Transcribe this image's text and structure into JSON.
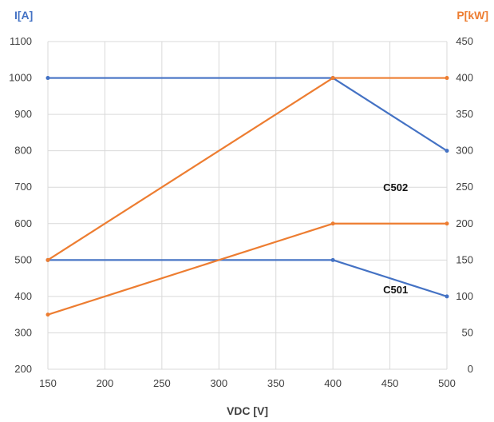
{
  "chart_data": {
    "type": "line",
    "xlabel": "VDC [V]",
    "ylabel_left": "I[A]",
    "ylabel_right": "P[kW]",
    "x_ticks": [
      150,
      200,
      250,
      300,
      350,
      400,
      450,
      500
    ],
    "y_left_ticks": [
      200,
      300,
      400,
      500,
      600,
      700,
      800,
      900,
      1000,
      1100
    ],
    "y_right_ticks": [
      0,
      50,
      100,
      150,
      200,
      250,
      300,
      350,
      400,
      450
    ],
    "xlim": [
      150,
      500
    ],
    "ylim_left": [
      200,
      1100
    ],
    "ylim_right": [
      0,
      450
    ],
    "grid": true,
    "colors": {
      "current": "#4472C4",
      "power": "#ED7D31"
    },
    "series": [
      {
        "axis": "left",
        "color": "current",
        "x": [
          150,
          400,
          500
        ],
        "y": [
          1000,
          1000,
          800
        ]
      },
      {
        "axis": "left",
        "color": "current",
        "x": [
          150,
          400,
          500
        ],
        "y": [
          500,
          500,
          400
        ]
      },
      {
        "axis": "right",
        "color": "power",
        "x": [
          150,
          400,
          500
        ],
        "y": [
          150,
          400,
          400
        ]
      },
      {
        "axis": "right",
        "color": "power",
        "x": [
          150,
          400,
          500
        ],
        "y": [
          75,
          200,
          200
        ]
      }
    ],
    "annotations": [
      {
        "text": "C502",
        "x": 455,
        "y_left": 700
      },
      {
        "text": "C501",
        "x": 455,
        "y_left": 420
      }
    ]
  }
}
